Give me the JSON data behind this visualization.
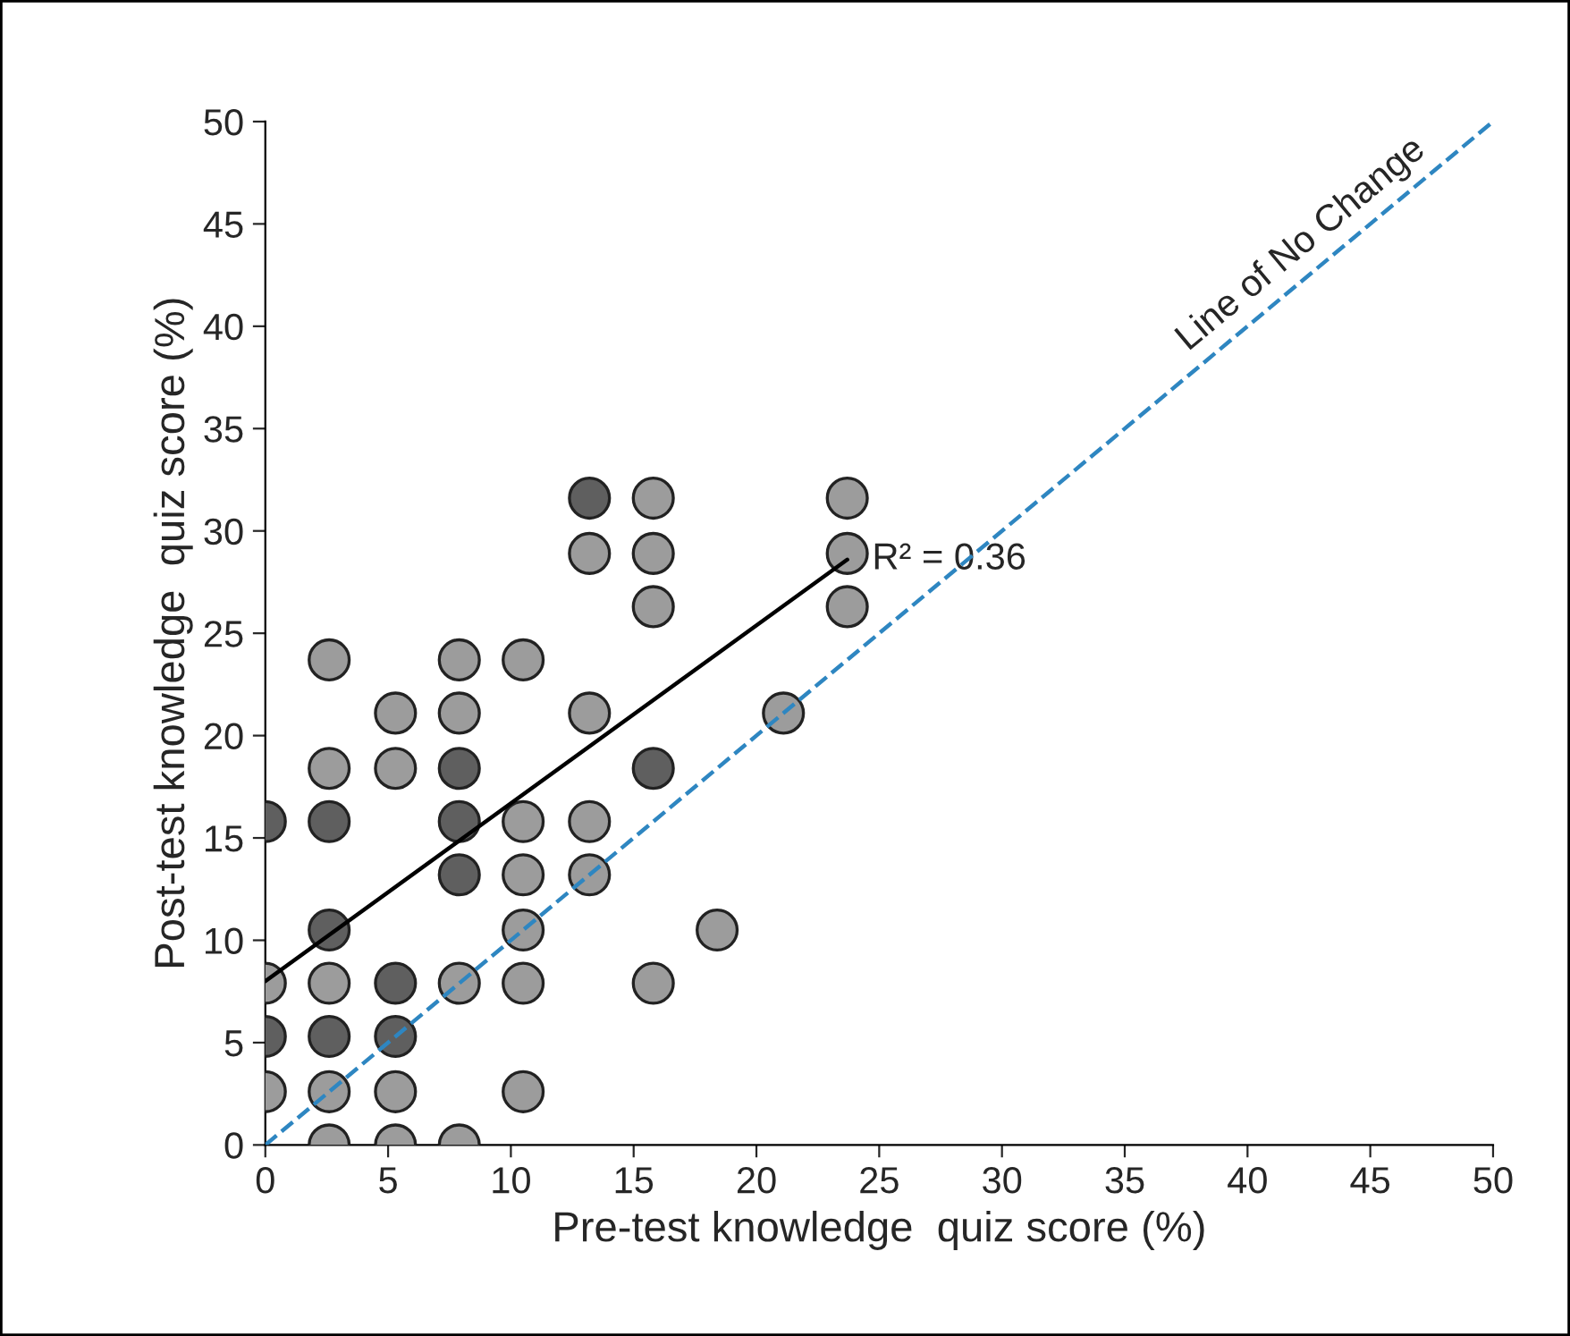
{
  "chart_data": {
    "type": "scatter",
    "xlabel": "Pre-test knowledge  quiz score (%)",
    "ylabel": "Post-test knowledge  quiz score (%)",
    "xlim": [
      0,
      50
    ],
    "ylim": [
      0,
      50
    ],
    "xticks": [
      0,
      5,
      10,
      15,
      20,
      25,
      30,
      35,
      40,
      45,
      50
    ],
    "yticks": [
      0,
      5,
      10,
      15,
      20,
      25,
      30,
      35,
      40,
      45,
      50
    ],
    "grid": false,
    "series": [
      {
        "marker": "circle",
        "x": [
          0,
          0,
          0,
          0,
          2.6,
          2.6,
          2.6,
          2.6,
          2.6,
          2.6,
          2.6,
          2.6,
          5.3,
          5.3,
          5.3,
          5.3,
          5.3,
          5.3,
          7.9,
          7.9,
          7.9,
          7.9,
          7.9,
          7.9,
          7.9,
          10.5,
          10.5,
          10.5,
          10.5,
          10.5,
          10.5,
          13.2,
          13.2,
          13.2,
          13.2,
          13.2,
          15.8,
          15.8,
          15.8,
          15.8,
          15.8,
          18.4,
          21.1,
          23.7,
          23.7,
          23.7
        ],
        "values": [
          15.8,
          7.9,
          5.3,
          2.6,
          23.7,
          18.4,
          15.8,
          10.5,
          7.9,
          5.3,
          2.6,
          0,
          21.1,
          18.4,
          7.9,
          5.3,
          2.6,
          0,
          23.7,
          21.1,
          18.4,
          15.8,
          13.2,
          7.9,
          0,
          23.7,
          15.8,
          13.2,
          10.5,
          7.9,
          2.6,
          31.6,
          28.9,
          21.1,
          15.8,
          13.2,
          31.6,
          28.9,
          26.3,
          18.4,
          7.9,
          10.5,
          21.1,
          31.6,
          28.9,
          26.3
        ],
        "colors": [
          "#5f5f5f",
          "#9c9c9c",
          "#5f5f5f",
          "#9c9c9c",
          "#9c9c9c",
          "#9c9c9c",
          "#5f5f5f",
          "#5f5f5f",
          "#9c9c9c",
          "#5f5f5f",
          "#9c9c9c",
          "#9c9c9c",
          "#9c9c9c",
          "#9c9c9c",
          "#5f5f5f",
          "#5f5f5f",
          "#9c9c9c",
          "#9c9c9c",
          "#9c9c9c",
          "#9c9c9c",
          "#5f5f5f",
          "#5f5f5f",
          "#5f5f5f",
          "#9c9c9c",
          "#9c9c9c",
          "#9c9c9c",
          "#9c9c9c",
          "#9c9c9c",
          "#9c9c9c",
          "#9c9c9c",
          "#9c9c9c",
          "#5f5f5f",
          "#9c9c9c",
          "#9c9c9c",
          "#9c9c9c",
          "#9c9c9c",
          "#9c9c9c",
          "#9c9c9c",
          "#9c9c9c",
          "#5f5f5f",
          "#9c9c9c",
          "#9c9c9c",
          "#9c9c9c",
          "#9c9c9c",
          "#9c9c9c",
          "#9c9c9c"
        ]
      },
      {
        "type": "line",
        "x": [
          0,
          23.7
        ],
        "values": [
          8.0,
          28.6
        ],
        "color": "#000000",
        "line_style": "solid",
        "marker": "none"
      },
      {
        "type": "line",
        "x": [
          0,
          50
        ],
        "values": [
          0,
          50
        ],
        "color": "#2e86c1",
        "line_style": "dashed",
        "marker": "none"
      }
    ],
    "annotations": [
      {
        "text": "R² = 0.36",
        "x": 23.7,
        "y": 28.6
      },
      {
        "text": "Line of No Change",
        "x": 43,
        "y": 43
      }
    ]
  }
}
